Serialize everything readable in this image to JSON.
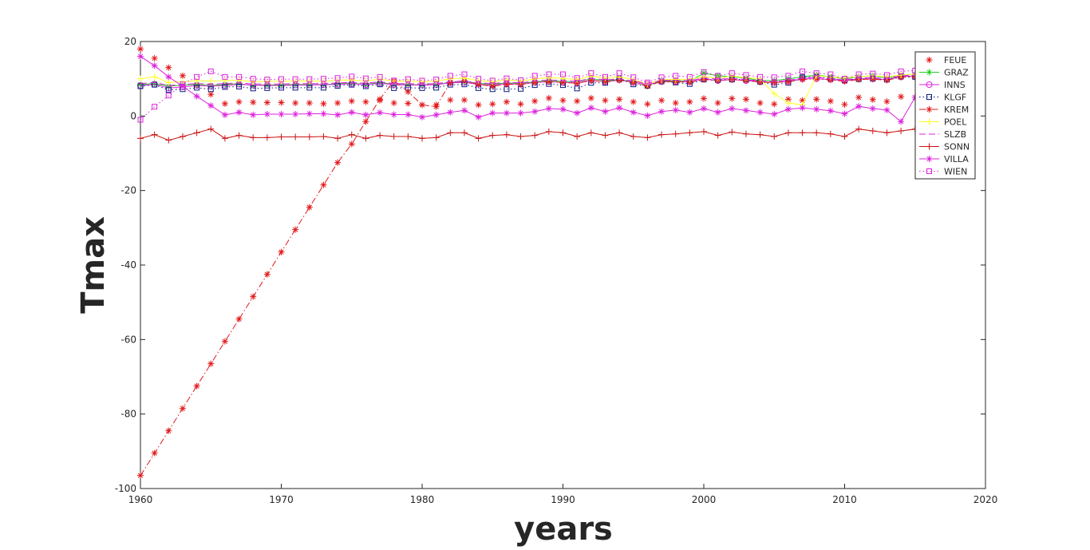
{
  "chart_data": {
    "type": "line",
    "xlabel": "years",
    "ylabel": "Tmax",
    "xlim": [
      1960,
      2020
    ],
    "ylim": [
      -100,
      20
    ],
    "xticks": [
      1960,
      1970,
      1980,
      1990,
      2000,
      2010,
      2020
    ],
    "yticks": [
      -100,
      -80,
      -60,
      -40,
      -20,
      0,
      20
    ],
    "grid": false,
    "legend_position": "top-right",
    "x": [
      1960,
      1961,
      1962,
      1963,
      1964,
      1965,
      1966,
      1967,
      1968,
      1969,
      1970,
      1971,
      1972,
      1973,
      1974,
      1975,
      1976,
      1977,
      1978,
      1979,
      1980,
      1981,
      1982,
      1983,
      1984,
      1985,
      1986,
      1987,
      1988,
      1989,
      1990,
      1991,
      1992,
      1993,
      1994,
      1995,
      1996,
      1997,
      1998,
      1999,
      2000,
      2001,
      2002,
      2003,
      2004,
      2005,
      2006,
      2007,
      2008,
      2009,
      2010,
      2011,
      2012,
      2013,
      2014,
      2015
    ],
    "series": [
      {
        "name": "FEUE",
        "color": "#e31a1c",
        "line": "none",
        "marker": "asterisk",
        "values": [
          18,
          15.5,
          13,
          10.8,
          8.3,
          5.8,
          3.3,
          3.8,
          3.7,
          3.6,
          3.6,
          3.5,
          3.5,
          3.3,
          3.5,
          4,
          3.8,
          4.2,
          3.5,
          3.4,
          3,
          3,
          4.3,
          4.3,
          3,
          3.2,
          3.8,
          3.2,
          4,
          4.8,
          4.2,
          4,
          4.8,
          4.2,
          4.5,
          3.8,
          3.2,
          4.2,
          3.5,
          3.8,
          4.7,
          3.5,
          4.7,
          4.5,
          3.5,
          3.2,
          4.5,
          4.2,
          4.5,
          4,
          3.1,
          5,
          4.4,
          3.9,
          5.2,
          5
        ]
      },
      {
        "name": "GRAZ",
        "color": "#22cc22",
        "line": "solid",
        "marker": "asterisk",
        "values": [
          8.5,
          8.7,
          8,
          8.3,
          8.5,
          8.2,
          8.5,
          8.7,
          8.2,
          8.4,
          8.3,
          8.5,
          8.4,
          8.4,
          8.7,
          8.8,
          8.5,
          9,
          8.5,
          8.4,
          8.4,
          8.5,
          9,
          9.2,
          8.8,
          8.5,
          8.9,
          8.7,
          9.2,
          9.5,
          9.3,
          9.2,
          10,
          9.5,
          9.8,
          9.2,
          8.2,
          9.5,
          9.5,
          9.4,
          11.5,
          10.8,
          10.5,
          10.2,
          9.5,
          9.5,
          10,
          10.5,
          11,
          10.5,
          10,
          10.5,
          10.8,
          10.2,
          11,
          11.2
        ]
      },
      {
        "name": "INNS",
        "color": "#dd22dd",
        "line": "solid",
        "marker": "circle",
        "values": [
          8.2,
          8.5,
          7.5,
          7.8,
          8.2,
          8,
          8.2,
          8.5,
          8.3,
          8.2,
          8.2,
          8.3,
          8.3,
          8.4,
          8.5,
          8.7,
          8.4,
          8.8,
          8.4,
          8.3,
          8.3,
          8.4,
          8.9,
          9,
          8.5,
          8.3,
          8.7,
          8.5,
          9,
          9.2,
          9,
          8.9,
          9.6,
          9.2,
          9.7,
          9,
          8.5,
          9.2,
          9.2,
          9.2,
          10,
          9.5,
          9.8,
          9.5,
          9.2,
          9,
          9.3,
          10,
          10,
          9.8,
          9.5,
          10,
          10,
          9.8,
          10.5,
          10.8
        ]
      },
      {
        "name": "KLGF",
        "color": "#0a1a80",
        "line": "dotted",
        "marker": "square",
        "values": [
          8,
          8.4,
          7,
          7.2,
          7.6,
          7.2,
          7.8,
          7.9,
          7.4,
          7.5,
          7.6,
          7.6,
          7.6,
          7.6,
          8.1,
          8.4,
          8,
          8.5,
          7.5,
          7.6,
          7.5,
          7.6,
          8.4,
          8.5,
          7.5,
          7.2,
          7.2,
          7.3,
          8.3,
          8.6,
          8.3,
          7.4,
          8.9,
          8.9,
          10,
          8.5,
          8.1,
          9.3,
          9,
          8.6,
          9.8,
          9.7,
          9.8,
          9.8,
          9.2,
          8.4,
          8.9,
          10.4,
          10.5,
          10.1,
          9.6,
          9.9,
          10,
          9.8,
          10.6,
          10.5
        ]
      },
      {
        "name": "KREM",
        "color": "#e31a1c",
        "line": "dashdot",
        "marker": "asterisk",
        "values": [
          -96.5,
          -90.5,
          -84.5,
          -78.5,
          -72.5,
          -66.5,
          -60.5,
          -54.5,
          -48.5,
          -42.5,
          -36.5,
          -30.5,
          -24.5,
          -18.5,
          -12.5,
          -7.5,
          -1.5,
          4.5,
          9.5,
          6.5,
          3,
          2.5,
          9,
          9.5,
          8.5,
          8,
          8.5,
          8.5,
          9,
          9.2,
          9,
          8.8,
          9.5,
          9.2,
          9.6,
          9,
          8,
          9.3,
          9.2,
          9.1,
          9.8,
          9.5,
          9.8,
          9.5,
          9.1,
          9,
          9.2,
          9.8,
          10,
          9.7,
          9.3,
          9.8,
          9.9,
          9.6,
          10.4,
          10.5
        ]
      },
      {
        "name": "POEL",
        "color": "#ffff22",
        "line": "solid",
        "marker": "plus",
        "values": [
          10,
          10.5,
          9,
          9.2,
          9.5,
          9.4,
          9.5,
          9.6,
          9.2,
          9.3,
          9.3,
          9.4,
          9.4,
          9.3,
          9.6,
          9.7,
          9.4,
          9.9,
          9.4,
          9.4,
          9.2,
          9.4,
          10,
          10.2,
          9.5,
          9.2,
          9.7,
          9.4,
          10,
          10.3,
          10.1,
          9.8,
          10.7,
          10.2,
          10.5,
          9.8,
          8.6,
          9.8,
          9.8,
          9.9,
          10.5,
          10.2,
          10.7,
          10.3,
          10,
          6,
          3.5,
          3,
          10.8,
          10.5,
          10.2,
          10.6,
          10.8,
          10.5,
          11,
          11.2
        ]
      },
      {
        "name": "SLZB",
        "color": "#dd22dd",
        "line": "dashed",
        "marker": "none",
        "values": [
          8.7,
          9,
          8.2,
          8.5,
          8.7,
          8.5,
          8.7,
          8.9,
          8.6,
          8.6,
          8.6,
          8.7,
          8.7,
          8.7,
          8.9,
          9,
          8.8,
          9.2,
          8.7,
          8.7,
          8.6,
          8.7,
          9.2,
          9.4,
          8.9,
          8.7,
          9.1,
          8.9,
          9.4,
          9.7,
          9.5,
          9.3,
          10.1,
          9.7,
          10,
          9.4,
          8.7,
          9.6,
          9.6,
          9.5,
          10.2,
          9.9,
          10.1,
          9.8,
          9.4,
          9.2,
          9.6,
          10.2,
          10.4,
          10,
          9.7,
          10.2,
          10.3,
          10,
          10.8,
          11
        ]
      },
      {
        "name": "SONN",
        "color": "#cc1111",
        "line": "solid",
        "marker": "plus",
        "values": [
          -6,
          -5,
          -6.5,
          -5.5,
          -4.5,
          -3.5,
          -6,
          -5.2,
          -5.8,
          -5.8,
          -5.6,
          -5.6,
          -5.6,
          -5.5,
          -6,
          -5,
          -6,
          -5.2,
          -5.5,
          -5.5,
          -6,
          -5.8,
          -4.5,
          -4.5,
          -6,
          -5.2,
          -5,
          -5.5,
          -5.2,
          -4.2,
          -4.5,
          -5.5,
          -4.5,
          -5.2,
          -4.5,
          -5.5,
          -5.8,
          -5,
          -4.8,
          -4.5,
          -4.2,
          -5.2,
          -4.3,
          -4.8,
          -5,
          -5.5,
          -4.5,
          -4.5,
          -4.5,
          -4.8,
          -5.5,
          -3.5,
          -4,
          -4.5,
          -4,
          -3.5
        ]
      },
      {
        "name": "VILLA",
        "color": "#dd22dd",
        "line": "solid",
        "marker": "asterisk",
        "values": [
          16,
          13.5,
          10.5,
          8,
          5.3,
          2.8,
          0.3,
          1,
          0.3,
          0.5,
          0.5,
          0.5,
          0.6,
          0.6,
          0.3,
          1,
          0.3,
          0.9,
          0.4,
          0.4,
          -0.3,
          0.3,
          1,
          1.5,
          -0.3,
          0.8,
          0.8,
          0.8,
          1.2,
          2,
          1.8,
          0.8,
          2.2,
          1.2,
          2.2,
          1,
          0.1,
          1.2,
          1.6,
          1,
          2,
          1,
          2,
          1.5,
          1,
          0.5,
          1.8,
          2.2,
          1.8,
          1.4,
          0.6,
          2.6,
          2,
          1.6,
          -1.5,
          5
        ]
      },
      {
        "name": "WIEN",
        "color": "#dd22dd",
        "line": "dotted",
        "marker": "square",
        "values": [
          -1,
          2.5,
          5.5,
          8.5,
          10.5,
          12,
          10.5,
          10.5,
          10,
          9.8,
          9.9,
          9.9,
          9.9,
          10,
          10.2,
          10.6,
          10.1,
          10.5,
          9.5,
          9.9,
          9.5,
          9.8,
          10.8,
          11.2,
          10,
          9.5,
          10.1,
          9.6,
          10.8,
          11.2,
          11.2,
          10.2,
          11.5,
          10.5,
          11.5,
          10.4,
          9,
          10.4,
          10.8,
          10.5,
          11.8,
          10.8,
          11.5,
          11,
          10.5,
          10.4,
          10.8,
          12,
          11.5,
          11.2,
          10,
          11.2,
          11.4,
          11,
          12,
          12.2
        ]
      }
    ]
  }
}
